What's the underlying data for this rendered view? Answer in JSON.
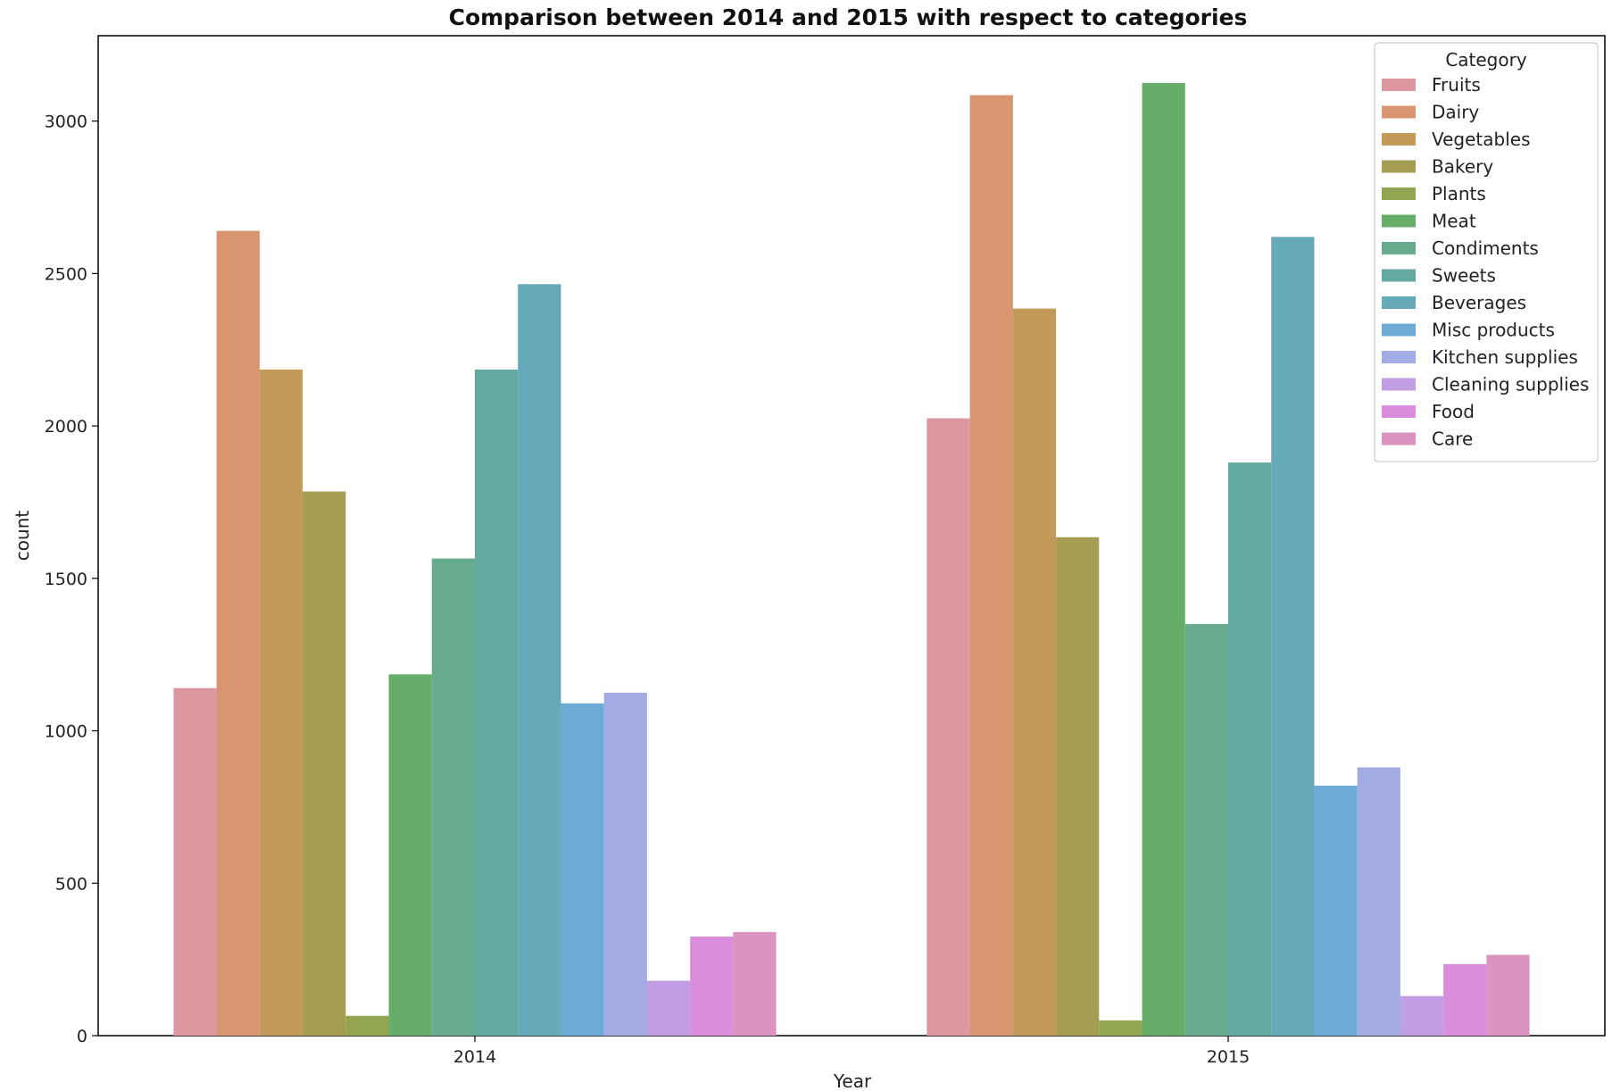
{
  "chart_data": {
    "type": "bar",
    "title": "Comparison between 2014 and 2015 with respect to categories",
    "xlabel": "Year",
    "ylabel": "count",
    "categories": [
      "2014",
      "2015"
    ],
    "ylim": [
      0,
      3280
    ],
    "yticks": [
      0,
      500,
      1000,
      1500,
      2000,
      2500,
      3000
    ],
    "grid": false,
    "legend": {
      "title": "Category",
      "placement": "top-right"
    },
    "series": [
      {
        "name": "Fruits",
        "color": "#dd97a0",
        "values": [
          1140,
          2025
        ]
      },
      {
        "name": "Dairy",
        "color": "#d9956f",
        "values": [
          2640,
          3085
        ]
      },
      {
        "name": "Vegetables",
        "color": "#c19b57",
        "values": [
          2185,
          2385
        ]
      },
      {
        "name": "Bakery",
        "color": "#a59e52",
        "values": [
          1785,
          1635
        ]
      },
      {
        "name": "Plants",
        "color": "#94a551",
        "values": [
          65,
          50
        ]
      },
      {
        "name": "Meat",
        "color": "#65ad69",
        "values": [
          1185,
          3125
        ]
      },
      {
        "name": "Condiments",
        "color": "#67ac8e",
        "values": [
          1565,
          1350
        ]
      },
      {
        "name": "Sweets",
        "color": "#64a9a1",
        "values": [
          2185,
          1880
        ]
      },
      {
        "name": "Beverages",
        "color": "#66a9b9",
        "values": [
          2465,
          2620
        ]
      },
      {
        "name": "Misc products",
        "color": "#6daad6",
        "values": [
          1090,
          820
        ]
      },
      {
        "name": "Kitchen supplies",
        "color": "#a3abe5",
        "values": [
          1125,
          880
        ]
      },
      {
        "name": "Cleaning supplies",
        "color": "#c19ee3",
        "values": [
          180,
          130
        ]
      },
      {
        "name": "Food",
        "color": "#da8ddc",
        "values": [
          325,
          235
        ]
      },
      {
        "name": "Care",
        "color": "#db93bf",
        "values": [
          340,
          265
        ]
      }
    ]
  }
}
